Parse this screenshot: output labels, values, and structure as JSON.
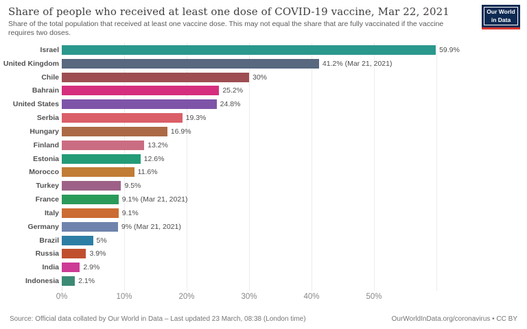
{
  "header": {
    "title": "Share of people who received at least one dose of COVID-19 vaccine, Mar 22, 2021",
    "subtitle": "Share of the total population that received at least one vaccine dose. This may not equal the share that are fully vaccinated if the vaccine requires two doses.",
    "logo": {
      "line1": "Our World",
      "line2": "in Data",
      "bg_color": "#0d2a52",
      "stripe_color": "#d7382f"
    }
  },
  "chart_data": {
    "type": "bar",
    "orientation": "horizontal",
    "title": "Share of people who received at least one dose of COVID-19 vaccine, Mar 22, 2021",
    "xlabel": "",
    "ylabel": "",
    "xlim": [
      0,
      60
    ],
    "grid": "vertical dotted lines every 10%",
    "categories": [
      "Israel",
      "United Kingdom",
      "Chile",
      "Bahrain",
      "United States",
      "Serbia",
      "Hungary",
      "Finland",
      "Estonia",
      "Morocco",
      "Turkey",
      "France",
      "Italy",
      "Germany",
      "Brazil",
      "Russia",
      "India",
      "Indonesia"
    ],
    "values": [
      59.9,
      41.2,
      30,
      25.2,
      24.8,
      19.3,
      16.9,
      13.2,
      12.6,
      11.6,
      9.5,
      9.1,
      9.1,
      9,
      5,
      3.9,
      2.9,
      2.1
    ],
    "value_labels": [
      "59.9%",
      "41.2% (Mar 21, 2021)",
      "30%",
      "25.2%",
      "24.8%",
      "19.3%",
      "16.9%",
      "13.2%",
      "12.6%",
      "11.6%",
      "9.5%",
      "9.1% (Mar 21, 2021)",
      "9.1%",
      "9% (Mar 21, 2021)",
      "5%",
      "3.9%",
      "2.9%",
      "2.1%"
    ],
    "bar_colors": [
      "#2a988c",
      "#57687f",
      "#9e4e52",
      "#d52e7e",
      "#7e54a8",
      "#da5f68",
      "#ab6a45",
      "#ca6d82",
      "#239b77",
      "#c17c35",
      "#9d6188",
      "#2a9a5a",
      "#cb6c33",
      "#7083ad",
      "#2d7ea5",
      "#c04f2e",
      "#cd3b95",
      "#3d8a74"
    ],
    "x_ticks": [
      "0%",
      "10%",
      "20%",
      "30%",
      "40%",
      "50%"
    ]
  },
  "footer": {
    "source": "Source: Official data collated by Our World in Data – Last updated 23 March, 08:38 (London time)",
    "link": "OurWorldInData.org/coronavirus • CC BY"
  }
}
